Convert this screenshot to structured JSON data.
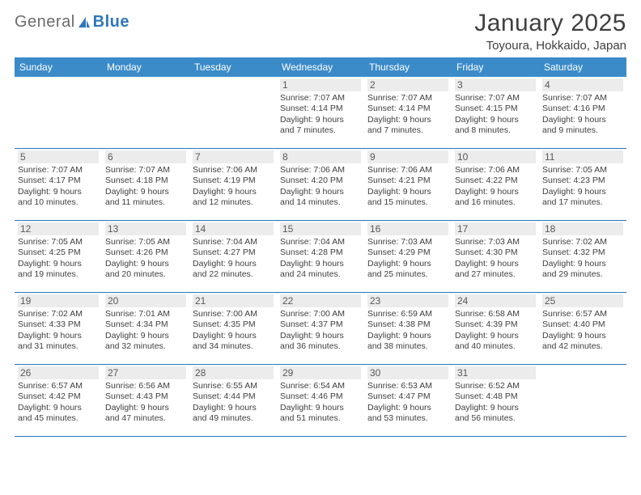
{
  "brand": {
    "text_gray": "General",
    "text_blue": "Blue"
  },
  "title": "January 2025",
  "location": "Toyoura, Hokkaido, Japan",
  "colors": {
    "header_bg": "#3b8bc9",
    "header_text": "#ffffff",
    "daynum_bg": "#ececec",
    "daynum_text": "#595959",
    "body_text": "#404040",
    "week_divider": "#2f77bb",
    "page_bg": "#ffffff",
    "logo_gray": "#6b6b6b",
    "logo_blue": "#2f77bb"
  },
  "fonts": {
    "title_size_pt": 22,
    "location_size_pt": 11,
    "dayhead_size_pt": 9,
    "daynum_size_pt": 9,
    "info_size_pt": 8
  },
  "layout": {
    "columns": 7,
    "rows": 5,
    "first_weekday_col": 3
  },
  "day_headers": [
    "Sunday",
    "Monday",
    "Tuesday",
    "Wednesday",
    "Thursday",
    "Friday",
    "Saturday"
  ],
  "weeks": [
    [
      null,
      null,
      null,
      {
        "n": "1",
        "sunrise": "7:07 AM",
        "sunset": "4:14 PM",
        "dl_h": 9,
        "dl_m": 7
      },
      {
        "n": "2",
        "sunrise": "7:07 AM",
        "sunset": "4:14 PM",
        "dl_h": 9,
        "dl_m": 7
      },
      {
        "n": "3",
        "sunrise": "7:07 AM",
        "sunset": "4:15 PM",
        "dl_h": 9,
        "dl_m": 8
      },
      {
        "n": "4",
        "sunrise": "7:07 AM",
        "sunset": "4:16 PM",
        "dl_h": 9,
        "dl_m": 9
      }
    ],
    [
      {
        "n": "5",
        "sunrise": "7:07 AM",
        "sunset": "4:17 PM",
        "dl_h": 9,
        "dl_m": 10
      },
      {
        "n": "6",
        "sunrise": "7:07 AM",
        "sunset": "4:18 PM",
        "dl_h": 9,
        "dl_m": 11
      },
      {
        "n": "7",
        "sunrise": "7:06 AM",
        "sunset": "4:19 PM",
        "dl_h": 9,
        "dl_m": 12
      },
      {
        "n": "8",
        "sunrise": "7:06 AM",
        "sunset": "4:20 PM",
        "dl_h": 9,
        "dl_m": 14
      },
      {
        "n": "9",
        "sunrise": "7:06 AM",
        "sunset": "4:21 PM",
        "dl_h": 9,
        "dl_m": 15
      },
      {
        "n": "10",
        "sunrise": "7:06 AM",
        "sunset": "4:22 PM",
        "dl_h": 9,
        "dl_m": 16
      },
      {
        "n": "11",
        "sunrise": "7:05 AM",
        "sunset": "4:23 PM",
        "dl_h": 9,
        "dl_m": 17
      }
    ],
    [
      {
        "n": "12",
        "sunrise": "7:05 AM",
        "sunset": "4:25 PM",
        "dl_h": 9,
        "dl_m": 19
      },
      {
        "n": "13",
        "sunrise": "7:05 AM",
        "sunset": "4:26 PM",
        "dl_h": 9,
        "dl_m": 20
      },
      {
        "n": "14",
        "sunrise": "7:04 AM",
        "sunset": "4:27 PM",
        "dl_h": 9,
        "dl_m": 22
      },
      {
        "n": "15",
        "sunrise": "7:04 AM",
        "sunset": "4:28 PM",
        "dl_h": 9,
        "dl_m": 24
      },
      {
        "n": "16",
        "sunrise": "7:03 AM",
        "sunset": "4:29 PM",
        "dl_h": 9,
        "dl_m": 25
      },
      {
        "n": "17",
        "sunrise": "7:03 AM",
        "sunset": "4:30 PM",
        "dl_h": 9,
        "dl_m": 27
      },
      {
        "n": "18",
        "sunrise": "7:02 AM",
        "sunset": "4:32 PM",
        "dl_h": 9,
        "dl_m": 29
      }
    ],
    [
      {
        "n": "19",
        "sunrise": "7:02 AM",
        "sunset": "4:33 PM",
        "dl_h": 9,
        "dl_m": 31
      },
      {
        "n": "20",
        "sunrise": "7:01 AM",
        "sunset": "4:34 PM",
        "dl_h": 9,
        "dl_m": 32
      },
      {
        "n": "21",
        "sunrise": "7:00 AM",
        "sunset": "4:35 PM",
        "dl_h": 9,
        "dl_m": 34
      },
      {
        "n": "22",
        "sunrise": "7:00 AM",
        "sunset": "4:37 PM",
        "dl_h": 9,
        "dl_m": 36
      },
      {
        "n": "23",
        "sunrise": "6:59 AM",
        "sunset": "4:38 PM",
        "dl_h": 9,
        "dl_m": 38
      },
      {
        "n": "24",
        "sunrise": "6:58 AM",
        "sunset": "4:39 PM",
        "dl_h": 9,
        "dl_m": 40
      },
      {
        "n": "25",
        "sunrise": "6:57 AM",
        "sunset": "4:40 PM",
        "dl_h": 9,
        "dl_m": 42
      }
    ],
    [
      {
        "n": "26",
        "sunrise": "6:57 AM",
        "sunset": "4:42 PM",
        "dl_h": 9,
        "dl_m": 45
      },
      {
        "n": "27",
        "sunrise": "6:56 AM",
        "sunset": "4:43 PM",
        "dl_h": 9,
        "dl_m": 47
      },
      {
        "n": "28",
        "sunrise": "6:55 AM",
        "sunset": "4:44 PM",
        "dl_h": 9,
        "dl_m": 49
      },
      {
        "n": "29",
        "sunrise": "6:54 AM",
        "sunset": "4:46 PM",
        "dl_h": 9,
        "dl_m": 51
      },
      {
        "n": "30",
        "sunrise": "6:53 AM",
        "sunset": "4:47 PM",
        "dl_h": 9,
        "dl_m": 53
      },
      {
        "n": "31",
        "sunrise": "6:52 AM",
        "sunset": "4:48 PM",
        "dl_h": 9,
        "dl_m": 56
      },
      null
    ]
  ],
  "labels": {
    "sunrise_prefix": "Sunrise: ",
    "sunset_prefix": "Sunset: ",
    "daylight_prefix": "Daylight: ",
    "hours_word": " hours",
    "and_word": "and ",
    "minutes_word": " minutes."
  }
}
